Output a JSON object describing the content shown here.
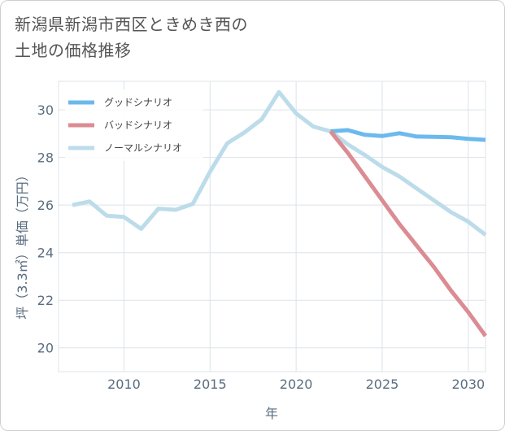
{
  "chart_data": {
    "type": "line",
    "title": "新潟県新潟市西区ときめき西の\n土地の価格推移",
    "xlabel": "年",
    "ylabel": "坪（3.3㎡）単価（万円）",
    "xlim": [
      2006.2,
      2031.0
    ],
    "ylim": [
      19.0,
      31.2
    ],
    "x_ticks": [
      2010,
      2015,
      2020,
      2025,
      2030
    ],
    "x_tick_labels": [
      "2010",
      "2015",
      "2020",
      "2025",
      "2030"
    ],
    "y_ticks": [
      20,
      22,
      24,
      26,
      28,
      30
    ],
    "y_tick_labels": [
      "20",
      "22",
      "24",
      "26",
      "28",
      "30"
    ],
    "grid": true,
    "legend_position": "top-left",
    "series": [
      {
        "name": "グッドシナリオ",
        "color": "#6cb9ee",
        "x": [
          2022,
          2023,
          2024,
          2025,
          2026,
          2027,
          2028,
          2029,
          2030,
          2031
        ],
        "values": [
          29.1,
          29.15,
          28.95,
          28.9,
          29.02,
          28.88,
          28.87,
          28.85,
          28.78,
          28.74
        ]
      },
      {
        "name": "バッドシナリオ",
        "color": "#db8c93",
        "x": [
          2022,
          2023,
          2024,
          2025,
          2026,
          2027,
          2028,
          2029,
          2030,
          2031
        ],
        "values": [
          29.1,
          28.2,
          27.2,
          26.2,
          25.2,
          24.3,
          23.4,
          22.4,
          21.5,
          20.5
        ]
      },
      {
        "name": "ノーマルシナリオ",
        "color": "#bcdcea",
        "x": [
          2007,
          2008,
          2009,
          2010,
          2011,
          2012,
          2013,
          2014,
          2015,
          2016,
          2017,
          2018,
          2019,
          2020,
          2021,
          2022,
          2023,
          2024,
          2025,
          2026,
          2027,
          2028,
          2029,
          2030,
          2031
        ],
        "values": [
          26.0,
          26.15,
          25.55,
          25.5,
          25.0,
          25.85,
          25.8,
          26.05,
          27.4,
          28.6,
          29.05,
          29.6,
          30.75,
          29.85,
          29.3,
          29.1,
          28.55,
          28.1,
          27.6,
          27.2,
          26.7,
          26.2,
          25.7,
          25.3,
          24.75
        ]
      }
    ]
  }
}
